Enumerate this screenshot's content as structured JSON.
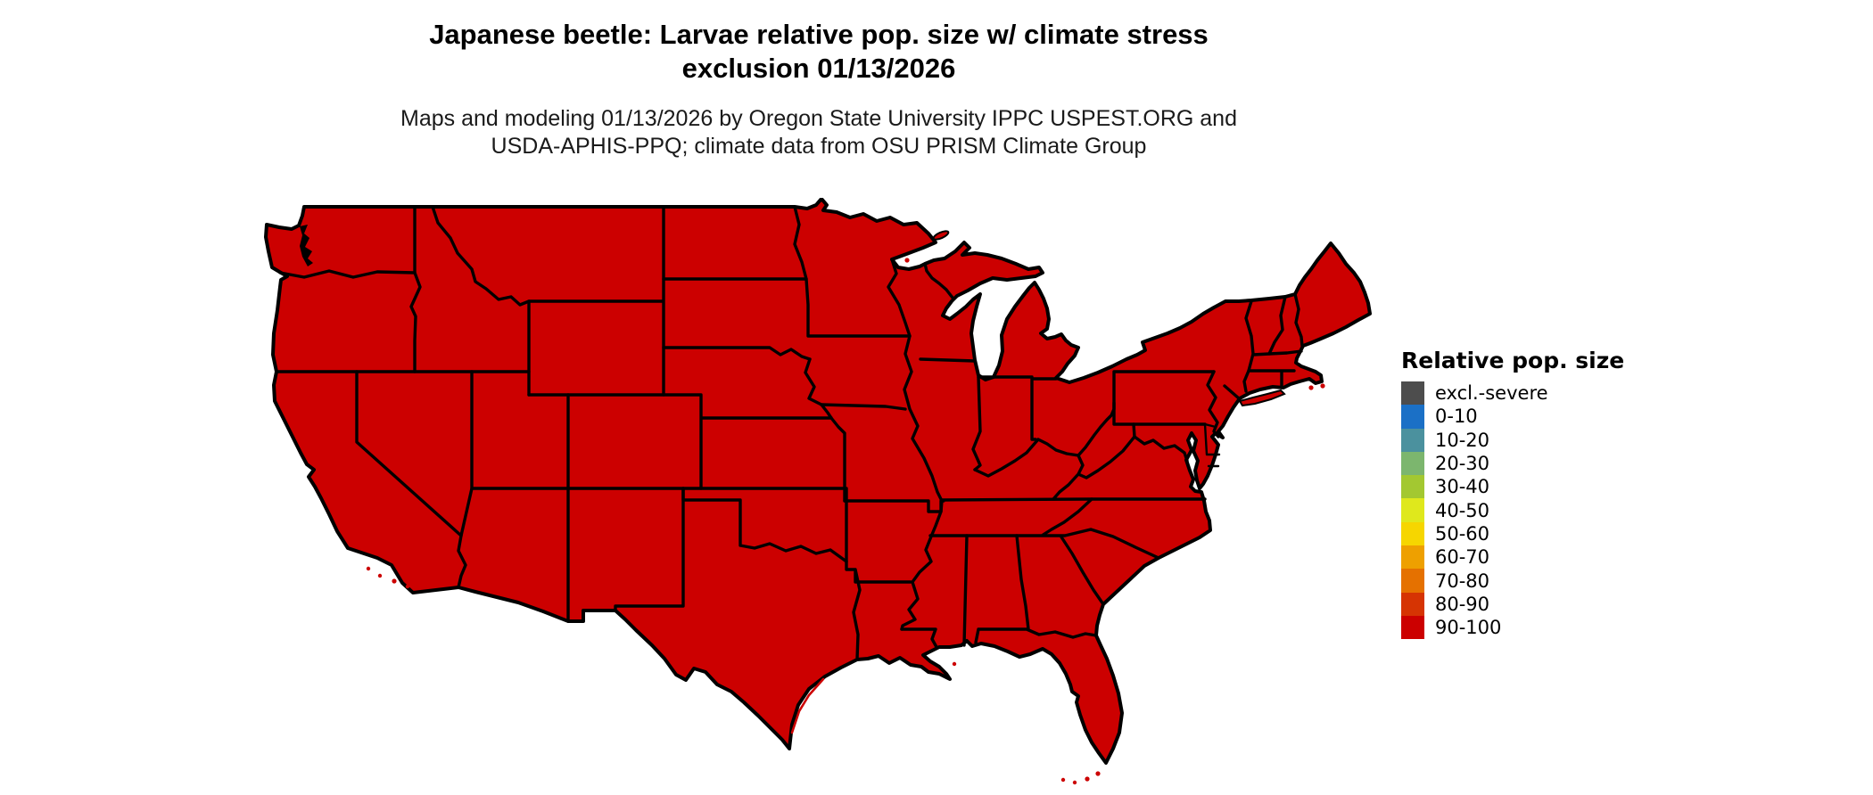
{
  "figure": {
    "title_line1": "Japanese beetle: Larvae relative pop. size w/ climate stress",
    "title_line2": "exclusion 01/13/2026",
    "subtitle_line1": "Maps and modeling 01/13/2026 by Oregon State University IPPC USPEST.ORG and",
    "subtitle_line2": "USDA-APHIS-PPQ; climate data from OSU PRISM Climate Group"
  },
  "legend": {
    "title": "Relative pop. size",
    "items": [
      {
        "label": "excl.-severe",
        "color": "#4d4d4d"
      },
      {
        "label": "0-10",
        "color": "#1b70c6"
      },
      {
        "label": "10-20",
        "color": "#4b919e"
      },
      {
        "label": "20-30",
        "color": "#7cb66e"
      },
      {
        "label": "30-40",
        "color": "#a3c831"
      },
      {
        "label": "40-50",
        "color": "#dfe81c"
      },
      {
        "label": "50-60",
        "color": "#f6d600"
      },
      {
        "label": "60-70",
        "color": "#eea000"
      },
      {
        "label": "70-80",
        "color": "#e57100"
      },
      {
        "label": "80-90",
        "color": "#d63403"
      },
      {
        "label": "90-100",
        "color": "#cc0000"
      }
    ]
  },
  "map": {
    "land_color": "#cc0000",
    "border_color": "#000000",
    "displayed_class_for_all_states": "90-100"
  }
}
